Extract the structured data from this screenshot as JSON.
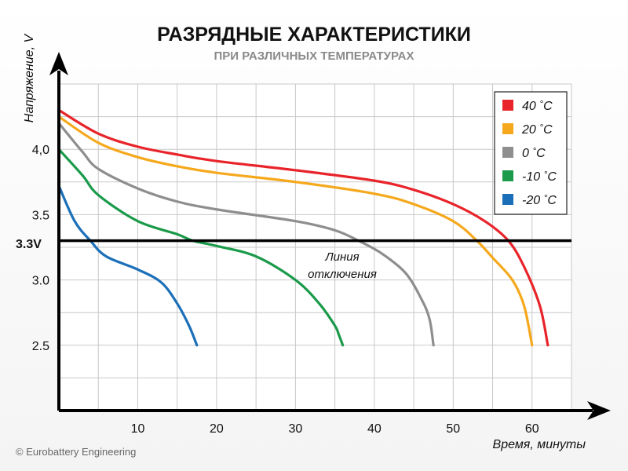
{
  "chart_data": {
    "type": "line",
    "title": "РАЗРЯДНЫЕ ХАРАКТЕРИСТИКИ",
    "subtitle": "ПРИ РАЗЛИЧНЫХ ТЕМПЕРАТУРАХ",
    "xlabel": "Время, минуты",
    "ylabel": "Напряжение, V",
    "xlim": [
      0,
      65
    ],
    "ylim": [
      2.0,
      4.5
    ],
    "xticks": [
      10,
      20,
      30,
      40,
      50,
      60
    ],
    "yticks": [
      {
        "value": 2.5,
        "label": "2.5"
      },
      {
        "value": 3.0,
        "label": "3.0"
      },
      {
        "value": 3.5,
        "label": "3.5"
      },
      {
        "value": 4.0,
        "label": "4,0"
      }
    ],
    "grid": true,
    "legend_position": "top-right",
    "reference_line": {
      "value": 3.3,
      "label": "3.3V",
      "annotation_line1": "Линия",
      "annotation_line2": "отключения"
    },
    "series": [
      {
        "name": "40 °C",
        "legend_value": "40",
        "unit": "°C",
        "color": "#e8242a",
        "x": [
          0,
          5,
          10,
          15,
          20,
          30,
          40,
          45,
          50,
          54,
          57,
          59,
          61,
          62
        ],
        "y": [
          4.3,
          4.12,
          4.02,
          3.96,
          3.91,
          3.84,
          3.76,
          3.69,
          3.58,
          3.45,
          3.3,
          3.1,
          2.8,
          2.5
        ]
      },
      {
        "name": "20 °C",
        "legend_value": "20",
        "unit": "°C",
        "color": "#f5a81c",
        "x": [
          0,
          5,
          10,
          15,
          20,
          30,
          40,
          45,
          50,
          53,
          55,
          57.5,
          59,
          60
        ],
        "y": [
          4.25,
          4.05,
          3.94,
          3.87,
          3.82,
          3.75,
          3.66,
          3.58,
          3.45,
          3.3,
          3.17,
          3.0,
          2.8,
          2.5
        ]
      },
      {
        "name": "0 °C",
        "legend_value": "0",
        "unit": "°C",
        "color": "#8e8e8e",
        "x": [
          0,
          3,
          5,
          10,
          15,
          20,
          30,
          35,
          38,
          41,
          44,
          46,
          47,
          47.5
        ],
        "y": [
          4.2,
          3.98,
          3.85,
          3.7,
          3.6,
          3.54,
          3.45,
          3.38,
          3.3,
          3.2,
          3.05,
          2.85,
          2.7,
          2.5
        ]
      },
      {
        "name": "-10 °C",
        "legend_value": "-10",
        "unit": "°C",
        "color": "#1a9a4a",
        "x": [
          0,
          3,
          5,
          10,
          15,
          17,
          20,
          25,
          30,
          33,
          35,
          35.5,
          36
        ],
        "y": [
          4.0,
          3.8,
          3.65,
          3.45,
          3.35,
          3.3,
          3.26,
          3.18,
          3.0,
          2.82,
          2.65,
          2.58,
          2.5
        ]
      },
      {
        "name": "-20 °C",
        "legend_value": "-20",
        "unit": "°C",
        "color": "#1a6fb8",
        "x": [
          0,
          2,
          4,
          6,
          10,
          13,
          15,
          16.5,
          17.5
        ],
        "y": [
          3.72,
          3.45,
          3.3,
          3.18,
          3.08,
          2.98,
          2.82,
          2.65,
          2.5
        ]
      }
    ]
  },
  "copyright": "© Eurobattery Engineering"
}
